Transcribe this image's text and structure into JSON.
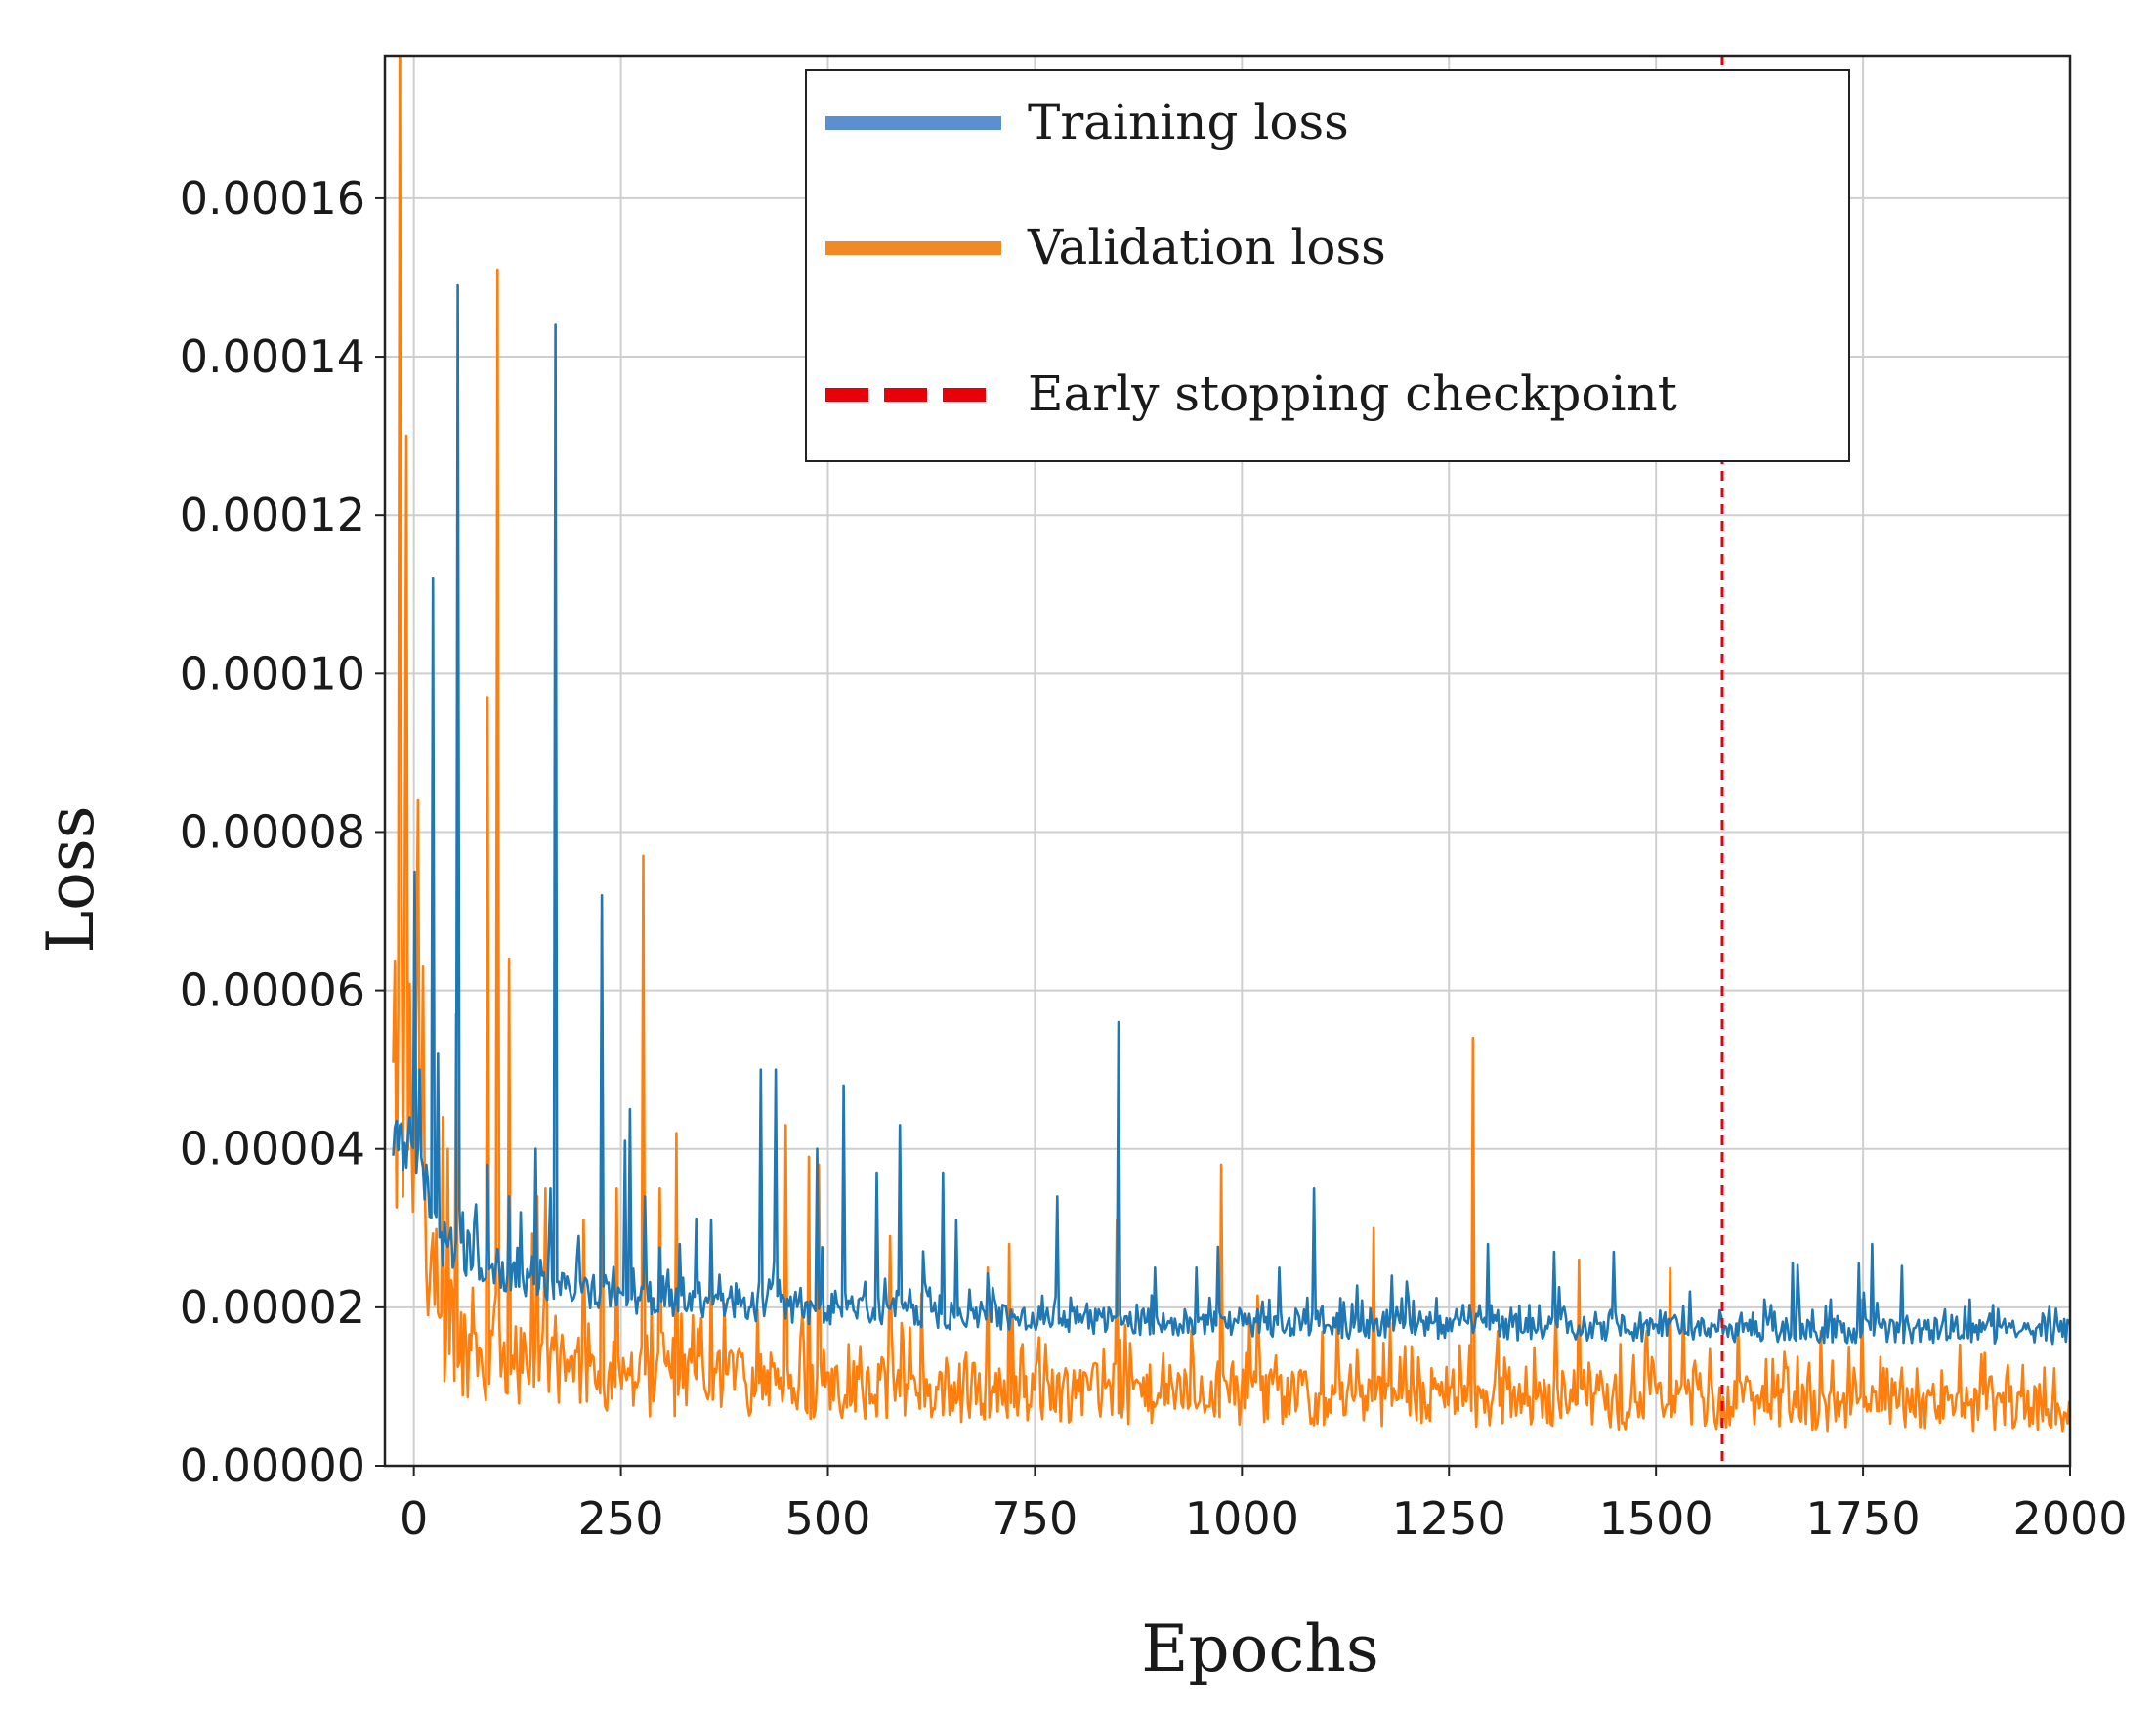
{
  "chart_data": {
    "type": "line",
    "title": "",
    "xlabel": "Epochs",
    "ylabel": "Loss",
    "xlim": [
      -35,
      2000
    ],
    "ylim": [
      0,
      0.000178
    ],
    "grid": true,
    "x_ticks": [
      0,
      250,
      500,
      750,
      1000,
      1250,
      1500,
      1750,
      2000
    ],
    "x_tick_labels": [
      "0",
      "250",
      "500",
      "750",
      "1000",
      "1250",
      "1500",
      "1750",
      "2000"
    ],
    "y_ticks": [
      0,
      2e-05,
      4e-05,
      6e-05,
      8e-05,
      0.0001,
      0.00012,
      0.00014,
      0.00016
    ],
    "y_tick_labels": [
      "0.00000",
      "0.00002",
      "0.00004",
      "0.00006",
      "0.00008",
      "0.00010",
      "0.00012",
      "0.00014",
      "0.00016"
    ],
    "legend_position": "top-right",
    "series": [
      {
        "name": "Training loss",
        "color": "#1f77b4",
        "legend_color": "#5b8fd0",
        "anchors": [
          [
            0,
            4e-05
          ],
          [
            30,
            2.8e-05
          ],
          [
            100,
            2.4e-05
          ],
          [
            250,
            2.1e-05
          ],
          [
            500,
            1.95e-05
          ],
          [
            750,
            1.85e-05
          ],
          [
            1000,
            1.78e-05
          ],
          [
            1250,
            1.75e-05
          ],
          [
            1500,
            1.72e-05
          ],
          [
            1750,
            1.7e-05
          ],
          [
            2000,
            1.68e-05
          ]
        ],
        "spikes": [
          [
            2,
            7.5e-05
          ],
          [
            8,
            5e-05
          ],
          [
            15,
            3.8e-05
          ],
          [
            24,
            0.000112
          ],
          [
            30,
            5.2e-05
          ],
          [
            53,
            0.000149
          ],
          [
            60,
            3.2e-05
          ],
          [
            75,
            3.3e-05
          ],
          [
            90,
            3.8e-05
          ],
          [
            115,
            3.4e-05
          ],
          [
            130,
            3.2e-05
          ],
          [
            148,
            4e-05
          ],
          [
            165,
            3.5e-05
          ],
          [
            172,
            0.000144
          ],
          [
            200,
            2.9e-05
          ],
          [
            228,
            7.2e-05
          ],
          [
            255,
            4.1e-05
          ],
          [
            262,
            4.5e-05
          ],
          [
            280,
            3.4e-05
          ],
          [
            322,
            2.8e-05
          ],
          [
            360,
            3.1e-05
          ],
          [
            419,
            5e-05
          ],
          [
            437,
            5e-05
          ],
          [
            488,
            4e-05
          ],
          [
            519,
            4.8e-05
          ],
          [
            560,
            3.7e-05
          ],
          [
            588,
            4.3e-05
          ],
          [
            640,
            3.7e-05
          ],
          [
            655,
            3.1e-05
          ],
          [
            778,
            3.4e-05
          ],
          [
            852,
            5.6e-05
          ],
          [
            895,
            2.5e-05
          ],
          [
            945,
            2.5e-05
          ],
          [
            1045,
            2.5e-05
          ],
          [
            1088,
            3.5e-05
          ],
          [
            1182,
            2.4e-05
          ],
          [
            1298,
            2.8e-05
          ],
          [
            1378,
            2.7e-05
          ],
          [
            1450,
            2.7e-05
          ],
          [
            1542,
            2.2e-05
          ],
          [
            1632,
            2.1e-05
          ],
          [
            1712,
            2.1e-05
          ],
          [
            1762,
            2.8e-05
          ],
          [
            1880,
            2.1e-05
          ]
        ]
      },
      {
        "name": "Validation loss",
        "color": "#ff7f0e",
        "legend_color": "#f08a24",
        "anchors": [
          [
            0,
            4.5e-05
          ],
          [
            15,
            2.1e-05
          ],
          [
            60,
            1.5e-05
          ],
          [
            150,
            1.2e-05
          ],
          [
            300,
            1.05e-05
          ],
          [
            500,
            9.8e-06
          ],
          [
            750,
            9.3e-06
          ],
          [
            1000,
            8.8e-06
          ],
          [
            1250,
            8.3e-06
          ],
          [
            1500,
            7.8e-06
          ],
          [
            1750,
            7.5e-06
          ],
          [
            2000,
            7.2e-06
          ]
        ],
        "spikes": [
          [
            -17,
            0.000185
          ],
          [
            -8,
            0.00013
          ],
          [
            5,
            8.4e-05
          ],
          [
            12,
            6.3e-05
          ],
          [
            35,
            4.4e-05
          ],
          [
            42,
            4e-05
          ],
          [
            52,
            5.7e-05
          ],
          [
            90,
            9.7e-05
          ],
          [
            102,
            0.000151
          ],
          [
            115,
            6.4e-05
          ],
          [
            150,
            3.4e-05
          ],
          [
            160,
            3.5e-05
          ],
          [
            205,
            3.1e-05
          ],
          [
            228,
            6.9e-05
          ],
          [
            245,
            3.5e-05
          ],
          [
            278,
            7.7e-05
          ],
          [
            298,
            3.5e-05
          ],
          [
            318,
            4.2e-05
          ],
          [
            360,
            2.5e-05
          ],
          [
            450,
            4.3e-05
          ],
          [
            478,
            3.9e-05
          ],
          [
            490,
            3.8e-05
          ],
          [
            575,
            2.9e-05
          ],
          [
            693,
            2.5e-05
          ],
          [
            720,
            2.8e-05
          ],
          [
            850,
            3.1e-05
          ],
          [
            975,
            3.8e-05
          ],
          [
            1010,
            1.8e-05
          ],
          [
            1160,
            3e-05
          ],
          [
            1280,
            5.4e-05
          ],
          [
            1310,
            1.7e-05
          ],
          [
            1408,
            2.6e-05
          ],
          [
            1490,
            1.7e-05
          ],
          [
            1600,
            1.8e-05
          ],
          [
            1700,
            1.7e-05
          ],
          [
            1750,
            2.1e-05
          ]
        ]
      }
    ],
    "reference_lines": [
      {
        "name": "Early stopping checkpoint",
        "x": 1580,
        "color": "#e8000b",
        "style": "dashed"
      }
    ]
  }
}
